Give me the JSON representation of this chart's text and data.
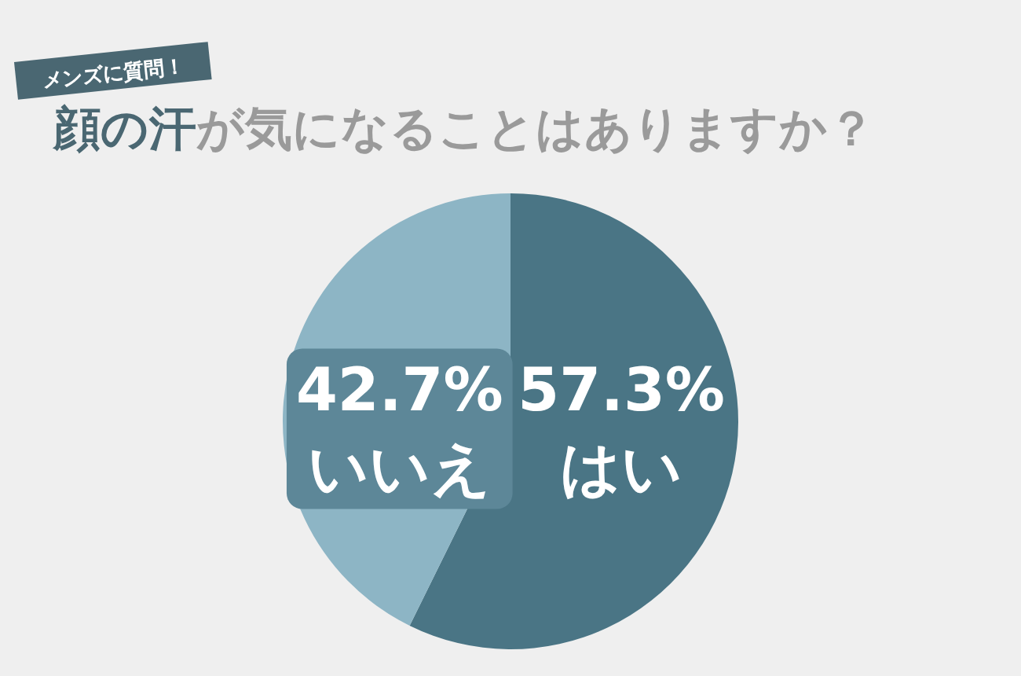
{
  "chart_data": {
    "type": "pie",
    "title": "顔の汗が気になることはありますか？",
    "subtitle": "メンズに質問！",
    "categories": [
      "はい",
      "いいえ"
    ],
    "values": [
      57.3,
      42.7
    ],
    "colors": [
      "#4a7585",
      "#8db5c5"
    ],
    "value_labels": [
      "57.3%",
      "42.7%"
    ]
  }
}
